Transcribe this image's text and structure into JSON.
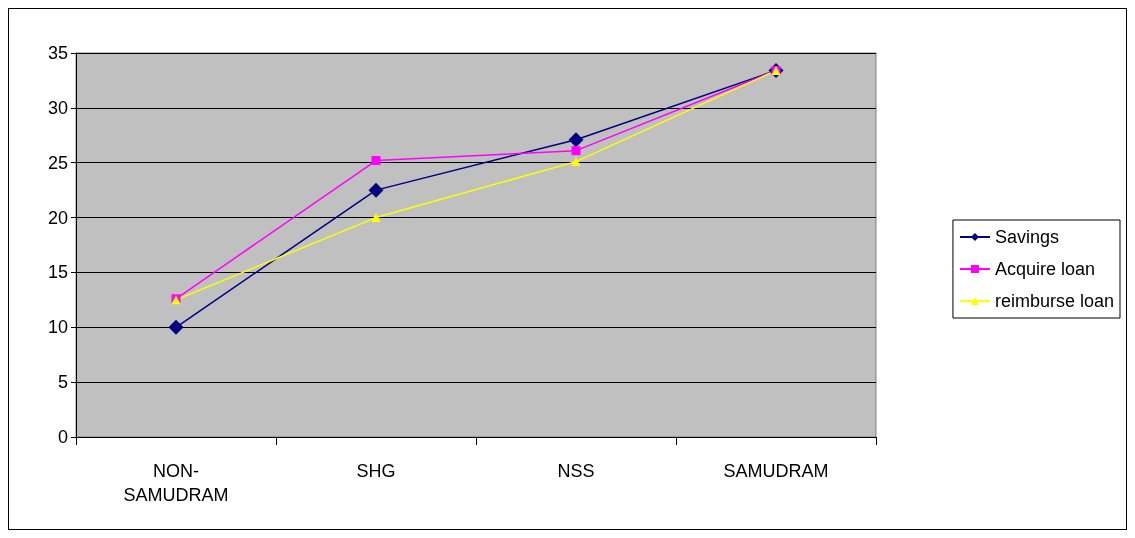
{
  "chart_data": {
    "type": "line",
    "categories": [
      "NON-SAMUDRAM",
      "SHG",
      "NSS",
      "SAMUDRAM"
    ],
    "series": [
      {
        "name": "Savings",
        "color": "#000080",
        "marker": "diamond",
        "values": [
          10,
          22.5,
          27.1,
          33.4
        ]
      },
      {
        "name": "Acquire loan",
        "color": "#ff00ff",
        "marker": "square",
        "values": [
          12.6,
          25.2,
          26.1,
          33.4
        ]
      },
      {
        "name": "reimburse loan",
        "color": "#ffff00",
        "marker": "triangle",
        "values": [
          12.5,
          20,
          25.1,
          33.4
        ]
      }
    ],
    "ylim": [
      0,
      35
    ],
    "yticks": [
      0,
      5,
      10,
      15,
      20,
      25,
      30,
      35
    ],
    "grid": "y",
    "legend": "right"
  }
}
